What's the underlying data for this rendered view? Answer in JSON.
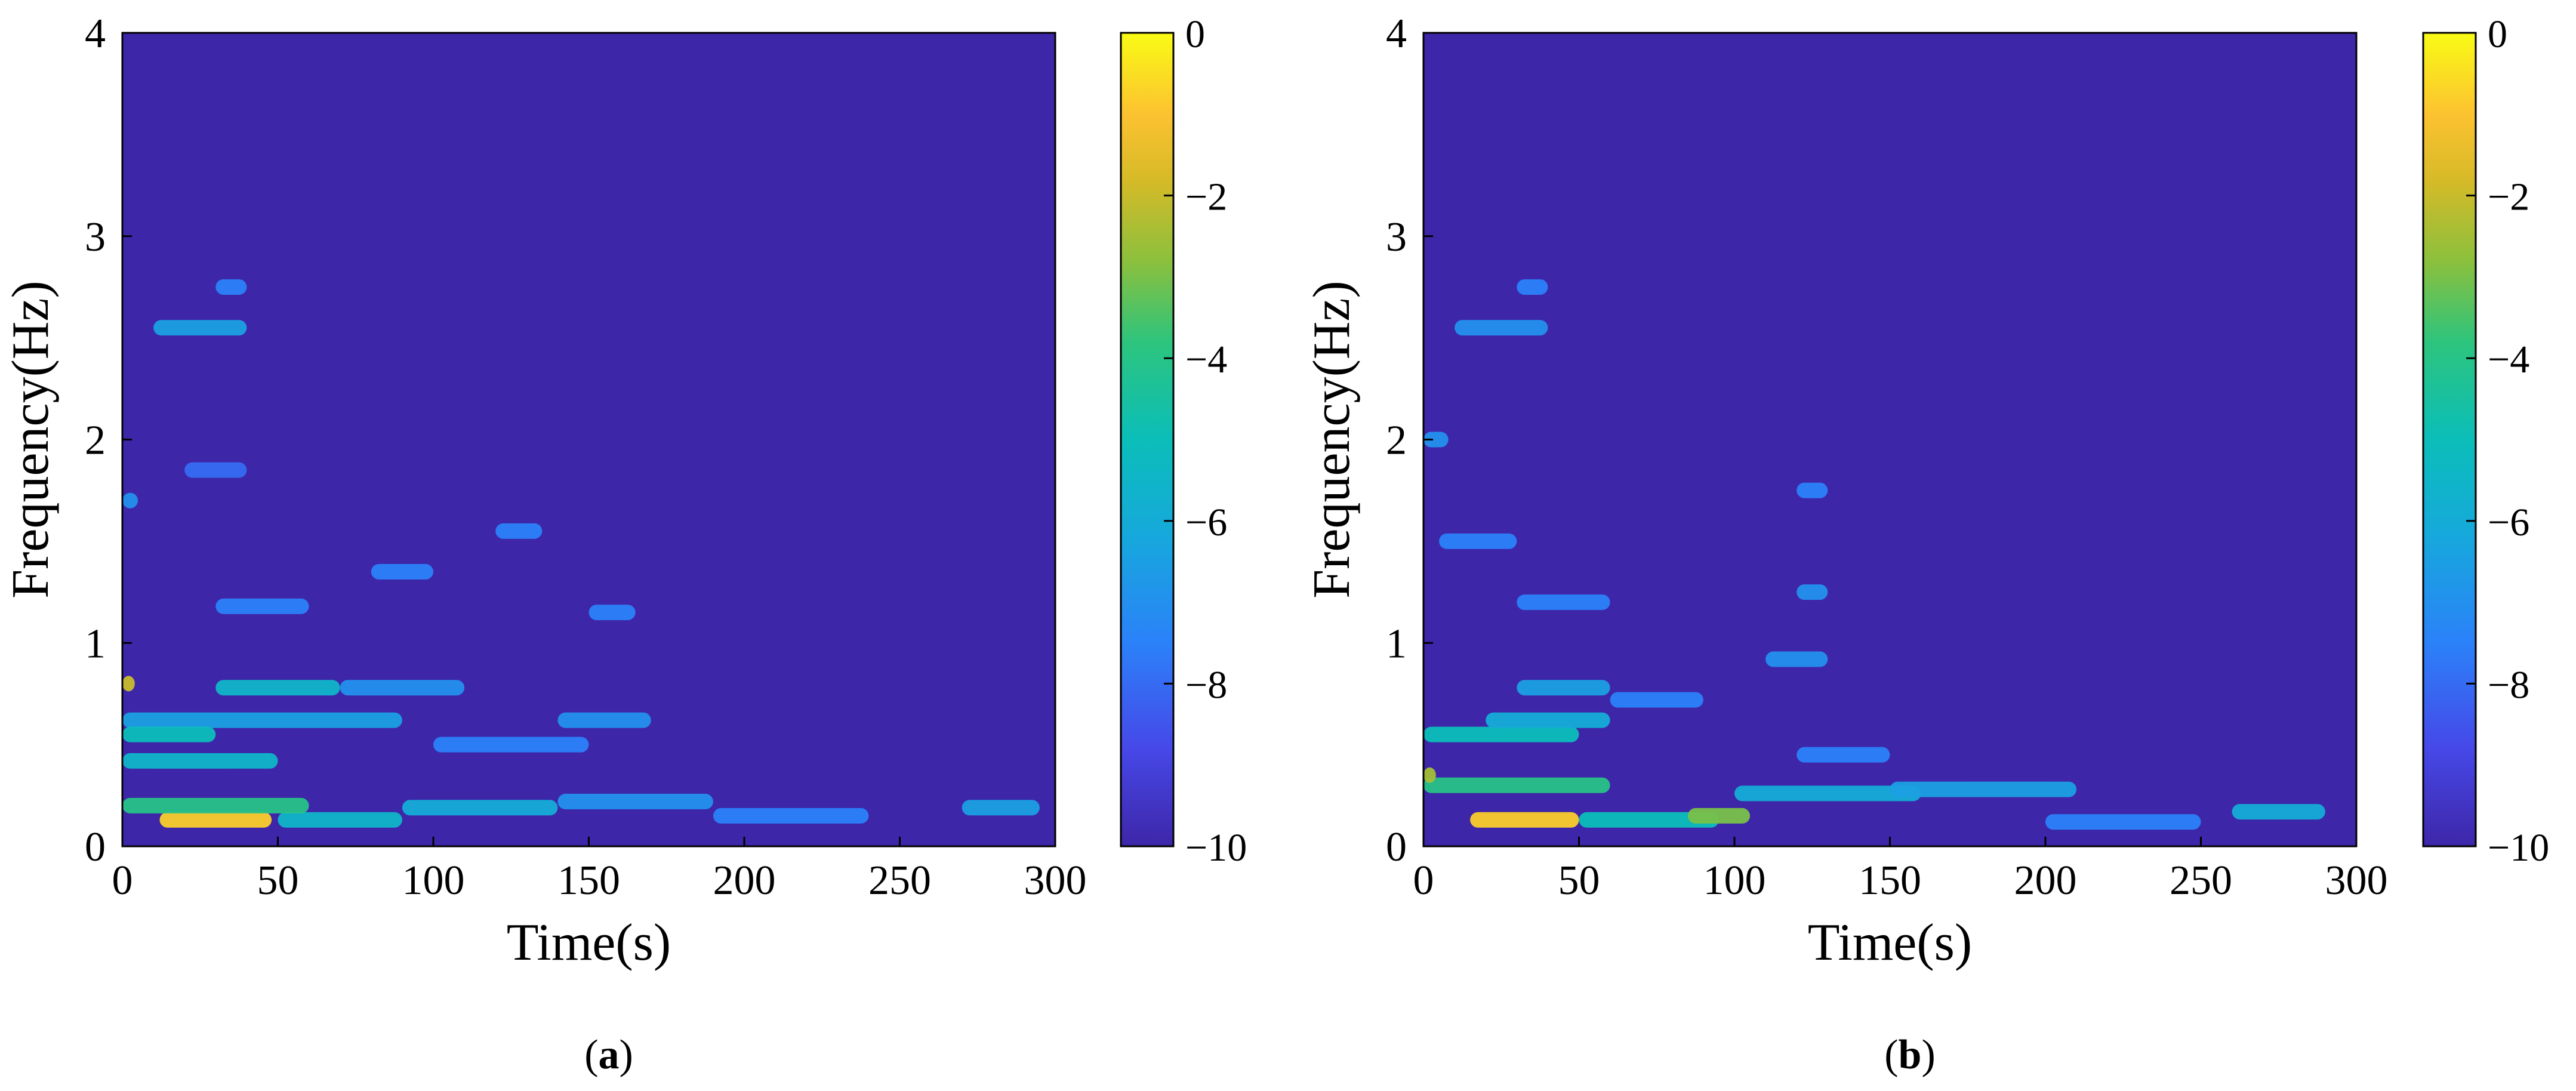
{
  "figure": {
    "panels": [
      {
        "label_prefix": "(",
        "label": "a",
        "label_suffix": ")"
      },
      {
        "label_prefix": "(",
        "label": "b",
        "label_suffix": ")"
      }
    ]
  },
  "chart_data": [
    {
      "type": "heatmap",
      "panel": "a",
      "title": "",
      "xlabel": "Time(s)",
      "ylabel": "Frequency(Hz)",
      "xlim": [
        0,
        300
      ],
      "ylim": [
        0,
        4
      ],
      "xticks": [
        0,
        50,
        100,
        150,
        200,
        250,
        300
      ],
      "yticks": [
        0,
        1,
        2,
        3,
        4
      ],
      "colorbar": {
        "colormap": "parula",
        "range": [
          -10,
          0
        ],
        "ticks": [
          0,
          -2,
          -4,
          -6,
          -8,
          -10
        ],
        "tick_labels": [
          "0",
          "−2",
          "−4",
          "−6",
          "−8",
          "−10"
        ]
      },
      "background_value": -10,
      "features": [
        {
          "t": [
            12,
            48
          ],
          "f": 0.13,
          "value": -0.8
        },
        {
          "t": [
            50,
            90
          ],
          "f": 0.13,
          "value": -5.5
        },
        {
          "t": [
            90,
            140
          ],
          "f": 0.19,
          "value": -6.0
        },
        {
          "t": [
            140,
            190
          ],
          "f": 0.22,
          "value": -7.0
        },
        {
          "t": [
            190,
            240
          ],
          "f": 0.15,
          "value": -7.5
        },
        {
          "t": [
            270,
            295
          ],
          "f": 0.19,
          "value": -6.5
        },
        {
          "t": [
            0,
            60
          ],
          "f": 0.2,
          "value": -4.0
        },
        {
          "t": [
            0,
            50
          ],
          "f": 0.42,
          "value": -5.5
        },
        {
          "t": [
            0,
            90
          ],
          "f": 0.62,
          "value": -6.5
        },
        {
          "t": [
            0,
            30
          ],
          "f": 0.55,
          "value": -5.0
        },
        {
          "t": [
            30,
            70
          ],
          "f": 0.78,
          "value": -5.5
        },
        {
          "t": [
            70,
            110
          ],
          "f": 0.78,
          "value": -7.0
        },
        {
          "t": [
            100,
            150
          ],
          "f": 0.5,
          "value": -7.5
        },
        {
          "t": [
            140,
            170
          ],
          "f": 0.62,
          "value": -7.0
        },
        {
          "t": [
            30,
            60
          ],
          "f": 1.18,
          "value": -7.5
        },
        {
          "t": [
            80,
            100
          ],
          "f": 1.35,
          "value": -7.5
        },
        {
          "t": [
            120,
            135
          ],
          "f": 1.55,
          "value": -7.5
        },
        {
          "t": [
            150,
            165
          ],
          "f": 1.15,
          "value": -7.5
        },
        {
          "t": [
            10,
            40
          ],
          "f": 2.55,
          "value": -6.5
        },
        {
          "t": [
            30,
            40
          ],
          "f": 2.75,
          "value": -7.5
        },
        {
          "t": [
            20,
            40
          ],
          "f": 1.85,
          "value": -8.0
        },
        {
          "t": [
            0,
            5
          ],
          "f": 1.7,
          "value": -7.0
        },
        {
          "t": [
            0,
            4
          ],
          "f": 0.8,
          "value": -2.0
        }
      ]
    },
    {
      "type": "heatmap",
      "panel": "b",
      "title": "",
      "xlabel": "Time(s)",
      "ylabel": "Frequency(Hz)",
      "xlim": [
        0,
        300
      ],
      "ylim": [
        0,
        4
      ],
      "xticks": [
        0,
        50,
        100,
        150,
        200,
        250,
        300
      ],
      "yticks": [
        0,
        1,
        2,
        3,
        4
      ],
      "colorbar": {
        "colormap": "parula",
        "range": [
          -10,
          0
        ],
        "ticks": [
          0,
          -2,
          -4,
          -6,
          -8,
          -10
        ],
        "tick_labels": [
          "0",
          "−2",
          "−4",
          "−6",
          "−8",
          "−10"
        ]
      },
      "background_value": -10,
      "features": [
        {
          "t": [
            15,
            50
          ],
          "f": 0.13,
          "value": -0.8
        },
        {
          "t": [
            50,
            95
          ],
          "f": 0.13,
          "value": -5.0
        },
        {
          "t": [
            85,
            105
          ],
          "f": 0.15,
          "value": -3.0
        },
        {
          "t": [
            100,
            160
          ],
          "f": 0.26,
          "value": -6.0
        },
        {
          "t": [
            150,
            210
          ],
          "f": 0.28,
          "value": -6.5
        },
        {
          "t": [
            200,
            250
          ],
          "f": 0.12,
          "value": -7.5
        },
        {
          "t": [
            260,
            290
          ],
          "f": 0.17,
          "value": -6.0
        },
        {
          "t": [
            0,
            60
          ],
          "f": 0.3,
          "value": -4.0
        },
        {
          "t": [
            0,
            50
          ],
          "f": 0.55,
          "value": -5.0
        },
        {
          "t": [
            20,
            60
          ],
          "f": 0.62,
          "value": -6.0
        },
        {
          "t": [
            30,
            60
          ],
          "f": 0.78,
          "value": -6.5
        },
        {
          "t": [
            60,
            90
          ],
          "f": 0.72,
          "value": -7.5
        },
        {
          "t": [
            110,
            130
          ],
          "f": 0.92,
          "value": -7.0
        },
        {
          "t": [
            120,
            150
          ],
          "f": 0.45,
          "value": -7.5
        },
        {
          "t": [
            30,
            60
          ],
          "f": 1.2,
          "value": -7.5
        },
        {
          "t": [
            120,
            130
          ],
          "f": 1.25,
          "value": -7.0
        },
        {
          "t": [
            120,
            130
          ],
          "f": 1.75,
          "value": -7.5
        },
        {
          "t": [
            5,
            30
          ],
          "f": 1.5,
          "value": -7.5
        },
        {
          "t": [
            10,
            40
          ],
          "f": 2.55,
          "value": -7.0
        },
        {
          "t": [
            30,
            40
          ],
          "f": 2.75,
          "value": -7.5
        },
        {
          "t": [
            0,
            8
          ],
          "f": 2.0,
          "value": -7.0
        },
        {
          "t": [
            0,
            4
          ],
          "f": 0.35,
          "value": -2.5
        }
      ]
    }
  ]
}
